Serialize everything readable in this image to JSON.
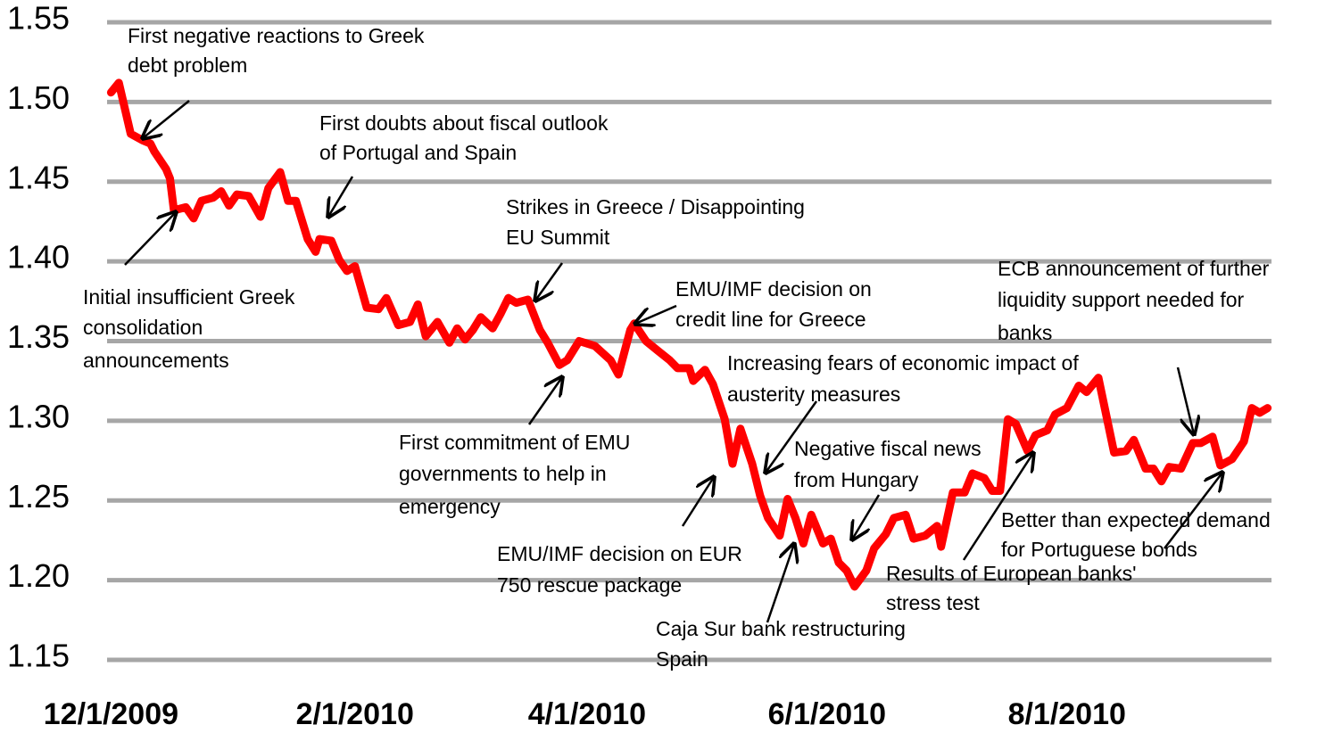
{
  "chart_data": {
    "type": "line",
    "color": "#ff0000",
    "grid": true,
    "ylim": [
      1.15,
      1.55
    ],
    "yticks": [
      1.15,
      {
        "value": 1.2,
        "label": "1.20"
      },
      1.25,
      {
        "value": 1.3,
        "label": "1.30"
      },
      1.35,
      {
        "value": 1.4,
        "label": "1.40"
      },
      1.45,
      {
        "value": 1.5,
        "label": "1.50"
      },
      1.55
    ],
    "xlim": [
      "11/30/2009",
      "9/22/2010"
    ],
    "xticks": [
      "12/1/2009",
      "2/1/2010",
      "4/1/2010",
      "6/1/2010",
      "8/1/2010"
    ],
    "x": [
      "12/1/2009",
      "12/3/2009",
      "12/6/2009",
      "12/9/2009",
      "12/11/2009",
      "12/12/2009",
      "12/15/2009",
      "12/16/2009",
      "12/17/2009",
      "12/20/2009",
      "12/22/2009",
      "12/24/2009",
      "12/27/2009",
      "12/29/2009",
      "12/31/2009",
      "1/2/2010",
      "1/5/2010",
      "1/8/2010",
      "1/10/2010",
      "1/13/2010",
      "1/15/2010",
      "1/17/2010",
      "1/20/2010",
      "1/22/2010",
      "1/23/2010",
      "1/26/2010",
      "1/28/2010",
      "1/30/2010",
      "2/1/2010",
      "2/4/2010",
      "2/7/2010",
      "2/9/2010",
      "2/12/2010",
      "2/15/2010",
      "2/17/2010",
      "2/19/2010",
      "2/22/2010",
      "2/25/2010",
      "2/27/2010",
      "3/1/2010",
      "3/3/2010",
      "3/5/2010",
      "3/8/2010",
      "3/10/2010",
      "3/12/2010",
      "3/14/2010",
      "3/17/2010",
      "3/20/2010",
      "3/22/2010",
      "3/25/2010",
      "3/27/2010",
      "3/30/2010",
      "4/3/2010",
      "4/7/2010",
      "4/9/2010",
      "4/12/2010",
      "4/13/2010",
      "4/16/2010",
      "4/19/2010",
      "4/22/2010",
      "4/24/2010",
      "4/27/2010",
      "4/28/2010",
      "5/1/2010",
      "5/3/2010",
      "5/6/2010",
      "5/8/2010",
      "5/10/2010",
      "5/13/2010",
      "5/15/2010",
      "5/17/2010",
      "5/20/2010",
      "5/22/2010",
      "5/24/2010",
      "5/26/2010",
      "5/28/2010",
      "5/31/2010",
      "6/2/2010",
      "6/4/2010",
      "6/6/2010",
      "6/8/2010",
      "6/11/2010",
      "6/13/2010",
      "6/16/2010",
      "6/18/2010",
      "6/21/2010",
      "6/23/2010",
      "6/26/2010",
      "6/29/2010",
      "6/30/2010",
      "7/3/2010",
      "7/6/2010",
      "7/8/2010",
      "7/11/2010",
      "7/13/2010",
      "7/15/2010",
      "7/17/2010",
      "7/19/2010",
      "7/22/2010",
      "7/24/2010",
      "7/27/2010",
      "7/29/2010",
      "8/1/2010",
      "8/4/2010",
      "8/6/2010",
      "8/9/2010",
      "8/13/2010",
      "8/16/2010",
      "8/18/2010",
      "8/21/2010",
      "8/23/2010",
      "8/25/2010",
      "8/27/2010",
      "8/30/2010",
      "9/2/2010",
      "9/4/2010",
      "9/7/2010",
      "9/9/2010",
      "9/12/2010",
      "9/15/2010",
      "9/17/2010",
      "9/19/2010",
      "9/21/2010"
    ],
    "values": [
      1.506,
      1.512,
      1.48,
      1.476,
      1.474,
      1.469,
      1.458,
      1.452,
      1.432,
      1.434,
      1.427,
      1.438,
      1.44,
      1.444,
      1.435,
      1.442,
      1.441,
      1.428,
      1.446,
      1.456,
      1.438,
      1.438,
      1.414,
      1.406,
      1.414,
      1.413,
      1.401,
      1.394,
      1.397,
      1.371,
      1.37,
      1.377,
      1.36,
      1.362,
      1.373,
      1.353,
      1.362,
      1.349,
      1.358,
      1.351,
      1.357,
      1.365,
      1.358,
      1.367,
      1.377,
      1.374,
      1.376,
      1.357,
      1.349,
      1.335,
      1.338,
      1.35,
      1.347,
      1.338,
      1.329,
      1.357,
      1.361,
      1.35,
      1.344,
      1.338,
      1.333,
      1.333,
      1.325,
      1.332,
      1.323,
      1.301,
      1.273,
      1.295,
      1.273,
      1.253,
      1.239,
      1.228,
      1.251,
      1.239,
      1.223,
      1.241,
      1.223,
      1.226,
      1.211,
      1.206,
      1.196,
      1.206,
      1.22,
      1.229,
      1.239,
      1.241,
      1.226,
      1.228,
      1.234,
      1.221,
      1.255,
      1.255,
      1.267,
      1.264,
      1.256,
      1.256,
      1.301,
      1.298,
      1.281,
      1.291,
      1.294,
      1.304,
      1.308,
      1.322,
      1.318,
      1.327,
      1.28,
      1.281,
      1.288,
      1.27,
      1.27,
      1.262,
      1.271,
      1.27,
      1.286,
      1.286,
      1.29,
      1.272,
      1.276,
      1.287,
      1.308,
      1.305,
      1.308
    ],
    "annotations": [
      [
        "First negative reactions to Greek",
        "debt problem"
      ],
      [
        "First doubts about fiscal outlook",
        "of Portugal and Spain"
      ],
      [
        "Initial insufficient Greek",
        "consolidation",
        "announcements"
      ],
      [
        "Strikes in Greece / Disappointing",
        "EU Summit"
      ],
      [
        "EMU/IMF decision on",
        "credit line for Greece"
      ],
      [
        "Increasing fears of economic impact of",
        "austerity measures"
      ],
      [
        "First commitment of EMU",
        "governments to help in",
        "emergency"
      ],
      [
        "Negative fiscal news",
        "from Hungary"
      ],
      [
        "ECB announcement of further",
        "liquidity support needed for",
        "banks"
      ],
      [
        "EMU/IMF decision on EUR",
        "750 rescue package"
      ],
      [
        "Caja Sur bank restructuring",
        "Spain"
      ],
      [
        "Results of European banks'",
        "stress test"
      ],
      [
        "Better than expected demand",
        "for Portuguese bonds"
      ]
    ]
  }
}
